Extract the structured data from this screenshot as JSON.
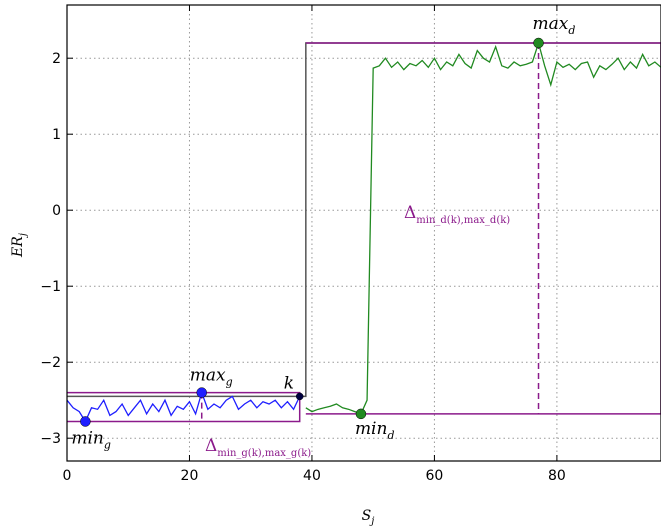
{
  "chart_data": {
    "type": "line",
    "title": "",
    "xlabel": "S",
    "xlabel_sub": "j",
    "ylabel": "ER",
    "ylabel_sub": "j",
    "xlim": [
      0,
      97
    ],
    "ylim": [
      -3.3,
      2.7
    ],
    "x_ticks": [
      0,
      20,
      40,
      60,
      80
    ],
    "y_ticks": [
      -3,
      -2,
      -1,
      0,
      1,
      2
    ],
    "x_tick_labels": [
      "0",
      "20",
      "40",
      "60",
      "80"
    ],
    "y_tick_labels": [
      "−3",
      "−2",
      "−1",
      "0",
      "1",
      "2"
    ],
    "grid": true,
    "colors": {
      "series_g": "#1f1fff",
      "series_d": "#218a21",
      "boxes": "#8b1a8b",
      "step": "#555555",
      "k_point": "#000040"
    },
    "series": [
      {
        "color": "series_g",
        "x": [
          0,
          1,
          2,
          3,
          4,
          5,
          6,
          7,
          8,
          9,
          10,
          11,
          12,
          13,
          14,
          15,
          16,
          17,
          18,
          19,
          20,
          21,
          22,
          23,
          24,
          25,
          26,
          27,
          28,
          29,
          30,
          31,
          32,
          33,
          34,
          35,
          36,
          37,
          38
        ],
        "y": [
          -2.5,
          -2.6,
          -2.65,
          -2.78,
          -2.6,
          -2.62,
          -2.5,
          -2.7,
          -2.65,
          -2.55,
          -2.7,
          -2.6,
          -2.5,
          -2.68,
          -2.55,
          -2.65,
          -2.5,
          -2.7,
          -2.58,
          -2.62,
          -2.52,
          -2.68,
          -2.4,
          -2.62,
          -2.55,
          -2.6,
          -2.5,
          -2.45,
          -2.62,
          -2.55,
          -2.5,
          -2.6,
          -2.52,
          -2.55,
          -2.5,
          -2.6,
          -2.52,
          -2.62,
          -2.45
        ]
      },
      {
        "color": "series_d",
        "x": [
          39,
          40,
          41,
          42,
          43,
          44,
          45,
          46,
          47,
          48,
          49,
          50,
          51,
          52,
          53,
          54,
          55,
          56,
          57,
          58,
          59,
          60,
          61,
          62,
          63,
          64,
          65,
          66,
          67,
          68,
          69,
          70,
          71,
          72,
          73,
          74,
          75,
          76,
          77,
          78,
          79,
          80,
          81,
          82,
          83,
          84,
          85,
          86,
          87,
          88,
          89,
          90,
          91,
          92,
          93,
          94,
          95,
          96,
          97
        ],
        "y": [
          -2.6,
          -2.65,
          -2.62,
          -2.6,
          -2.58,
          -2.55,
          -2.6,
          -2.62,
          -2.65,
          -2.68,
          -2.5,
          1.87,
          1.9,
          2.0,
          1.88,
          1.95,
          1.85,
          1.93,
          1.9,
          1.97,
          1.88,
          2.0,
          1.85,
          1.95,
          1.9,
          2.05,
          1.93,
          1.87,
          2.1,
          2.0,
          1.95,
          2.15,
          1.9,
          1.87,
          1.95,
          1.9,
          1.92,
          1.95,
          2.2,
          1.9,
          1.65,
          1.95,
          1.88,
          1.92,
          1.85,
          1.93,
          1.95,
          1.75,
          1.9,
          1.85,
          1.92,
          2.0,
          1.85,
          1.95,
          1.87,
          2.05,
          1.9,
          1.95,
          1.88
        ]
      }
    ],
    "step_line": {
      "x": [
        0,
        38,
        38,
        39,
        39,
        97
      ],
      "y": [
        -2.45,
        -2.45,
        -2.45,
        -2.45,
        2.2,
        2.2
      ]
    },
    "box_g": {
      "x0": 0,
      "x1": 38,
      "y0": -2.78,
      "y1": -2.4
    },
    "box_d": {
      "x0": 39,
      "x1": 97,
      "y0": -2.68,
      "y1": 2.2
    },
    "points": [
      {
        "name": "min",
        "sub": "g",
        "x": 3,
        "y": -2.78,
        "color": "series_g"
      },
      {
        "name": "max",
        "sub": "g",
        "x": 22,
        "y": -2.4,
        "color": "series_g"
      },
      {
        "name": "min",
        "sub": "d",
        "x": 48,
        "y": -2.68,
        "color": "series_d"
      },
      {
        "name": "max",
        "sub": "d",
        "x": 77,
        "y": 2.2,
        "color": "series_d"
      },
      {
        "name": "k",
        "sub": "",
        "x": 38,
        "y": -2.45,
        "color": "k_point"
      }
    ],
    "delta_g": {
      "label": "Δ",
      "sub": "min_g(k),max_g(k)",
      "x": 22
    },
    "delta_d": {
      "label": "Δ",
      "sub": "min_d(k),max_d(k)",
      "x": 77
    }
  }
}
